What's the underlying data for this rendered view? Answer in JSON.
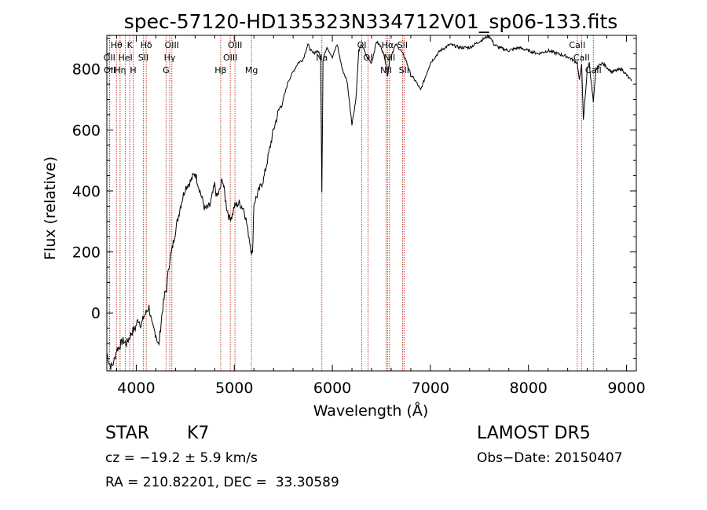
{
  "chart_data": {
    "type": "line",
    "title": "spec-57120-HD135323N334712V01_sp06-133.fits",
    "xlabel": "Wavelength (Å)",
    "ylabel": "Flux (relative)",
    "xlim": [
      3700,
      9100
    ],
    "ylim": [
      -190,
      910
    ],
    "x_ticks": [
      4000,
      5000,
      6000,
      7000,
      8000,
      9000
    ],
    "y_ticks": [
      0,
      200,
      400,
      600,
      800
    ],
    "grid": false,
    "line_color": "#000000",
    "marker_color": "#c0392b",
    "series": [
      {
        "x": [
          3700,
          3720,
          3740,
          3760,
          3780,
          3800,
          3830,
          3860,
          3900,
          3930,
          3960,
          3990,
          4020,
          4050,
          4080,
          4100,
          4130,
          4160,
          4200,
          4230,
          4260,
          4290,
          4310,
          4330,
          4360,
          4400,
          4450,
          4500,
          4550,
          4600,
          4650,
          4700,
          4750,
          4800,
          4820,
          4850,
          4880,
          4920,
          4950,
          4980,
          5000,
          5050,
          5100,
          5150,
          5170,
          5185,
          5200,
          5250,
          5300,
          5350,
          5400,
          5450,
          5500,
          5550,
          5600,
          5650,
          5700,
          5750,
          5800,
          5850,
          5880,
          5893,
          5905,
          5920,
          5950,
          6000,
          6050,
          6100,
          6150,
          6200,
          6240,
          6270,
          6300,
          6350,
          6400,
          6450,
          6500,
          6540,
          6563,
          6590,
          6650,
          6700,
          6750,
          6800,
          6850,
          6900,
          7000,
          7100,
          7200,
          7300,
          7400,
          7500,
          7550,
          7600,
          7650,
          7700,
          7800,
          7900,
          8000,
          8100,
          8200,
          8300,
          8400,
          8450,
          8498,
          8520,
          8542,
          8560,
          8600,
          8620,
          8662,
          8690,
          8750,
          8850,
          8950,
          9050
        ],
        "y": [
          -130,
          -160,
          -175,
          -170,
          -150,
          -120,
          -110,
          -90,
          -100,
          -80,
          -60,
          -50,
          -20,
          -40,
          -10,
          0,
          20,
          -40,
          -70,
          -110,
          -10,
          60,
          80,
          150,
          200,
          270,
          350,
          410,
          430,
          460,
          400,
          340,
          350,
          420,
          380,
          400,
          440,
          350,
          310,
          320,
          350,
          360,
          340,
          250,
          210,
          190,
          360,
          400,
          440,
          520,
          600,
          660,
          700,
          760,
          790,
          820,
          830,
          880,
          850,
          860,
          840,
          400,
          830,
          850,
          870,
          840,
          880,
          800,
          760,
          620,
          700,
          860,
          880,
          840,
          820,
          890,
          870,
          830,
          780,
          840,
          880,
          860,
          830,
          780,
          760,
          730,
          820,
          860,
          880,
          870,
          870,
          890,
          900,
          910,
          880,
          870,
          860,
          870,
          860,
          850,
          860,
          850,
          840,
          830,
          820,
          760,
          820,
          630,
          800,
          820,
          690,
          800,
          820,
          790,
          800,
          760
        ]
      }
    ],
    "lines": [
      {
        "label": "Hθ",
        "wl": 3798,
        "row": 0
      },
      {
        "label": "OII",
        "wl": 3727,
        "row": 1
      },
      {
        "label": "OII",
        "wl": 3729,
        "row": 2
      },
      {
        "label": "Hη",
        "wl": 3835,
        "row": 2
      },
      {
        "label": "K",
        "wl": 3934,
        "row": 0
      },
      {
        "label": "HeI",
        "wl": 3889,
        "row": 1
      },
      {
        "label": "H",
        "wl": 3969,
        "row": 2
      },
      {
        "label": "Hδ",
        "wl": 4102,
        "row": 0
      },
      {
        "label": "SII",
        "wl": 4072,
        "row": 1
      },
      {
        "label": "OIII",
        "wl": 4363,
        "row": 0
      },
      {
        "label": "Hγ",
        "wl": 4341,
        "row": 1
      },
      {
        "label": "G",
        "wl": 4304,
        "row": 2
      },
      {
        "label": "Hβ",
        "wl": 4861,
        "row": 2
      },
      {
        "label": "OIII",
        "wl": 5007,
        "row": 0
      },
      {
        "label": "OIII",
        "wl": 4959,
        "row": 1
      },
      {
        "label": "Mg",
        "wl": 5175,
        "row": 2
      },
      {
        "label": "Na",
        "wl": 5893,
        "row": 1
      },
      {
        "label": "OI",
        "wl": 6300,
        "row": 0
      },
      {
        "label": "OI",
        "wl": 6364,
        "row": 1
      },
      {
        "label": "Hα",
        "wl": 6563,
        "row": 0
      },
      {
        "label": "NII",
        "wl": 6583,
        "row": 1
      },
      {
        "label": "NII",
        "wl": 6548,
        "row": 2
      },
      {
        "label": "SII",
        "wl": 6716,
        "row": 0
      },
      {
        "label": "SII",
        "wl": 6731,
        "row": 2
      },
      {
        "label": "CaII",
        "wl": 8498,
        "row": 0
      },
      {
        "label": "CaII",
        "wl": 8542,
        "row": 1
      },
      {
        "label": "CaII",
        "wl": 8662,
        "row": 2
      }
    ]
  },
  "info": {
    "object_class": "STAR",
    "subclass": "K7",
    "survey": "LAMOST DR5",
    "cz": "cz = −19.2 ± 5.9 km/s",
    "obs_date": "Obs−Date: 20150407",
    "coords": "RA = 210.82201, DEC =  33.30589"
  }
}
